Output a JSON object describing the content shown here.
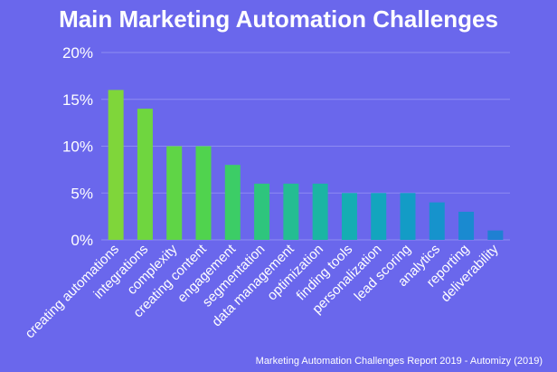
{
  "chart_data": {
    "type": "bar",
    "title": "Main Marketing Automation Challenges",
    "source": "Marketing Automation Challenges Report 2019  - Automizy (2019)",
    "xlabel": "",
    "ylabel": "",
    "ylim": [
      0,
      20
    ],
    "yticks": [
      0,
      5,
      10,
      15,
      20
    ],
    "ytick_labels": [
      "0%",
      "5%",
      "10%",
      "15%",
      "20%"
    ],
    "grid": true,
    "categories": [
      "creating automations",
      "integrations",
      "complexity",
      "creating content",
      "engagement",
      "segmentation",
      "data management",
      "optimization",
      "finding tools",
      "personalization",
      "lead scoring",
      "analytics",
      "reporting",
      "deliverability"
    ],
    "values": [
      16,
      14,
      10,
      10,
      8,
      6,
      6,
      6,
      5,
      5,
      5,
      4,
      3,
      1
    ],
    "bar_colors": [
      "#7fd63a",
      "#6fd63f",
      "#5fd546",
      "#50d34e",
      "#3ccd66",
      "#2ec57d",
      "#24bd92",
      "#1bb5a3",
      "#15adb3",
      "#13a5be",
      "#139cc6",
      "#1693cc",
      "#1a8ad0",
      "#1f80d2"
    ],
    "colors": {
      "background": "#6a67ec",
      "text": "#ffffff",
      "grid": "#8e8cf2"
    }
  }
}
